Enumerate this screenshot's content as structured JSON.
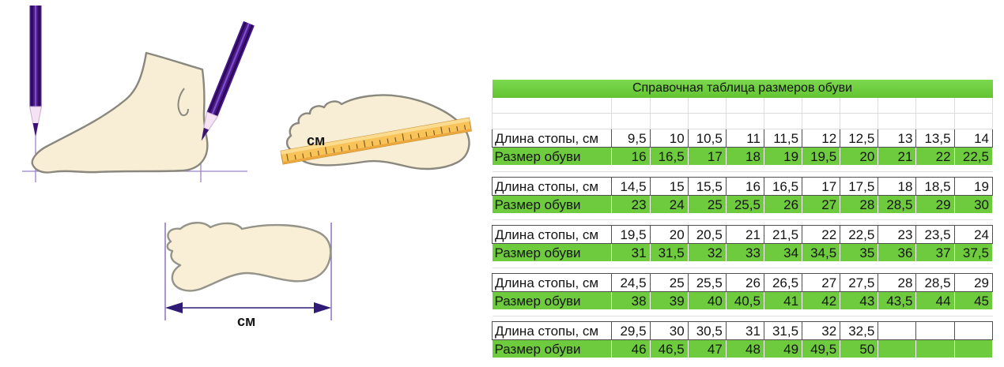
{
  "table": {
    "title": "Справочная таблица размеров обуви",
    "row_labels": {
      "length": "Длина стопы, см",
      "size": "Размер обуви"
    },
    "blocks": [
      {
        "length": [
          "9,5",
          "10",
          "10,5",
          "11",
          "11,5",
          "12",
          "12,5",
          "13",
          "13,5",
          "14"
        ],
        "size": [
          "16",
          "16,5",
          "17",
          "18",
          "19",
          "19,5",
          "20",
          "21",
          "22",
          "22,5"
        ]
      },
      {
        "length": [
          "14,5",
          "15",
          "15,5",
          "16",
          "16,5",
          "17",
          "17,5",
          "18",
          "18,5",
          "19"
        ],
        "size": [
          "23",
          "24",
          "25",
          "25,5",
          "26",
          "27",
          "28",
          "28,5",
          "29",
          "30"
        ]
      },
      {
        "length": [
          "19,5",
          "20",
          "20,5",
          "21",
          "21,5",
          "22",
          "22,5",
          "23",
          "23,5",
          "24"
        ],
        "size": [
          "31",
          "31,5",
          "32",
          "33",
          "34",
          "34,5",
          "35",
          "36",
          "37",
          "37,5"
        ]
      },
      {
        "length": [
          "24,5",
          "25",
          "25,5",
          "26",
          "26,5",
          "27",
          "27,5",
          "28",
          "28,5",
          "29"
        ],
        "size": [
          "38",
          "39",
          "40",
          "40,5",
          "41",
          "42",
          "43",
          "43,5",
          "44",
          "45"
        ]
      },
      {
        "length": [
          "29,5",
          "30",
          "30,5",
          "31",
          "31,5",
          "32",
          "32,5",
          "",
          "",
          ""
        ],
        "size": [
          "46",
          "46,5",
          "47",
          "48",
          "49",
          "49,5",
          "50",
          "",
          "",
          ""
        ]
      }
    ]
  },
  "illustrations": {
    "ruler_unit_label": "см",
    "arrow_unit_label": "см"
  },
  "colors": {
    "accent_green": "#6ecb3e",
    "pencil_purple": "#4a1a8c",
    "ruler_orange": "#f8c45a",
    "foot_cream": "#f8eed5",
    "measure_line_purple": "#9b84c9",
    "arrow_purple": "#2f1a75"
  },
  "icons": {
    "foot_side": "foot-side-measure-illustration",
    "foot_ruler": "foot-sole-ruler-illustration",
    "footprint": "footprint-length-arrow-illustration"
  }
}
